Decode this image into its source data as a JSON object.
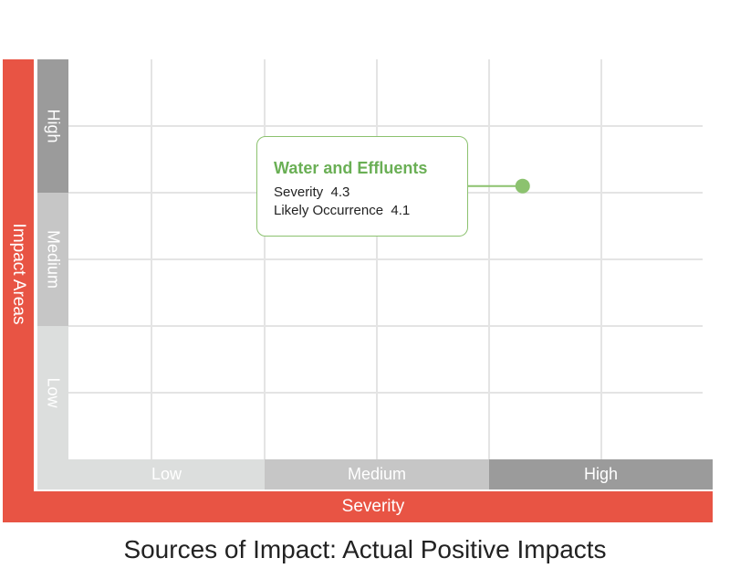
{
  "chart_data": {
    "type": "scatter",
    "title": "Sources of Impact: Actual Positive Impacts",
    "xlabel": "Severity",
    "ylabel": "Impact Areas",
    "xlim": [
      0,
      6
    ],
    "ylim": [
      0,
      6
    ],
    "x_bands": [
      "Low",
      "Medium",
      "High"
    ],
    "y_bands": [
      "Low",
      "Medium",
      "High"
    ],
    "grid": true,
    "points": [
      {
        "name": "Water and Effluents",
        "x": 4.3,
        "y": 4.1,
        "x_label": "Severity",
        "y_label": "Likely Occurrence"
      }
    ]
  },
  "colors": {
    "axis_bar": "#e85444",
    "band_low": "#dcdedd",
    "band_medium": "#c6c6c6",
    "band_high": "#9b9b9b",
    "grid": "#e4e4e4",
    "point": "#8cc26f",
    "tooltip_title": "#6aaf55"
  }
}
